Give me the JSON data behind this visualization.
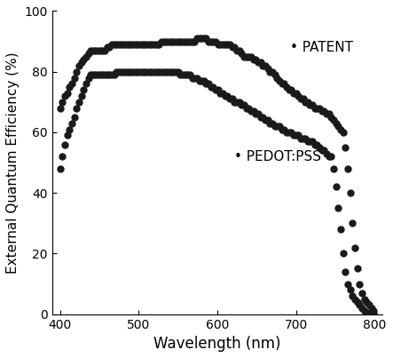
{
  "title": "",
  "xlabel": "Wavelength (nm)",
  "ylabel": "External Quantum Efficiency (%)",
  "xlim": [
    390,
    810
  ],
  "ylim": [
    0,
    100
  ],
  "xticks": [
    400,
    500,
    600,
    700,
    800
  ],
  "yticks": [
    0,
    20,
    40,
    60,
    80,
    100
  ],
  "marker_color": "#1a1a1a",
  "marker_size": 5,
  "legend_patent": "PATENT",
  "legend_pedot": "PEDOT:PSS",
  "patent_x": [
    400,
    403,
    406,
    409,
    412,
    415,
    418,
    421,
    424,
    427,
    430,
    433,
    436,
    439,
    442,
    445,
    448,
    451,
    454,
    457,
    460,
    463,
    466,
    469,
    472,
    475,
    478,
    481,
    484,
    487,
    490,
    493,
    496,
    499,
    502,
    505,
    508,
    511,
    514,
    517,
    520,
    523,
    526,
    529,
    532,
    535,
    538,
    541,
    544,
    547,
    550,
    553,
    556,
    559,
    562,
    565,
    568,
    571,
    574,
    577,
    580,
    583,
    586,
    589,
    592,
    595,
    598,
    601,
    604,
    607,
    610,
    613,
    616,
    619,
    622,
    625,
    628,
    631,
    634,
    637,
    640,
    643,
    646,
    649,
    652,
    655,
    658,
    661,
    664,
    667,
    670,
    673,
    676,
    679,
    682,
    685,
    688,
    691,
    694,
    697,
    700,
    703,
    706,
    709,
    712,
    715,
    718,
    721,
    724,
    727,
    730,
    733,
    736,
    739,
    742,
    745,
    748,
    751,
    754,
    757,
    760,
    763,
    766,
    769,
    772,
    775,
    778,
    781,
    784,
    787,
    790,
    793,
    796,
    799
  ],
  "patent_y": [
    68,
    70,
    72,
    73,
    75,
    76,
    78,
    80,
    82,
    83,
    84,
    85,
    86,
    87,
    87,
    87,
    87,
    87,
    87,
    87,
    88,
    88,
    89,
    89,
    89,
    89,
    89,
    89,
    89,
    89,
    89,
    89,
    89,
    89,
    89,
    89,
    89,
    89,
    89,
    89,
    89,
    89,
    89,
    90,
    90,
    90,
    90,
    90,
    90,
    90,
    90,
    90,
    90,
    90,
    90,
    90,
    90,
    90,
    91,
    91,
    91,
    91,
    91,
    90,
    90,
    90,
    90,
    89,
    89,
    89,
    89,
    89,
    89,
    88,
    88,
    87,
    87,
    86,
    85,
    85,
    85,
    85,
    84,
    84,
    83,
    83,
    82,
    82,
    81,
    80,
    80,
    79,
    78,
    77,
    76,
    76,
    75,
    74,
    74,
    73,
    73,
    72,
    71,
    71,
    70,
    70,
    69,
    69,
    68,
    68,
    68,
    67,
    67,
    66,
    66,
    65,
    64,
    63,
    62,
    61,
    60,
    55,
    48,
    40,
    30,
    22,
    15,
    10,
    7,
    5,
    4,
    3,
    2,
    1
  ],
  "pedot_x": [
    400,
    403,
    406,
    409,
    412,
    415,
    418,
    421,
    424,
    427,
    430,
    433,
    436,
    439,
    442,
    445,
    448,
    451,
    454,
    457,
    460,
    463,
    466,
    469,
    472,
    475,
    478,
    481,
    484,
    487,
    490,
    493,
    496,
    499,
    502,
    505,
    508,
    511,
    514,
    517,
    520,
    523,
    526,
    529,
    532,
    535,
    538,
    541,
    544,
    547,
    550,
    553,
    556,
    559,
    562,
    565,
    568,
    571,
    574,
    577,
    580,
    583,
    586,
    589,
    592,
    595,
    598,
    601,
    604,
    607,
    610,
    613,
    616,
    619,
    622,
    625,
    628,
    631,
    634,
    637,
    640,
    643,
    646,
    649,
    652,
    655,
    658,
    661,
    664,
    667,
    670,
    673,
    676,
    679,
    682,
    685,
    688,
    691,
    694,
    697,
    700,
    703,
    706,
    709,
    712,
    715,
    718,
    721,
    724,
    727,
    730,
    733,
    736,
    739,
    742,
    745,
    748,
    751,
    754,
    757,
    760,
    763,
    766,
    769,
    772,
    775,
    778,
    781,
    784,
    787,
    790,
    793,
    796,
    799
  ],
  "pedot_y": [
    48,
    52,
    56,
    59,
    61,
    63,
    65,
    68,
    70,
    72,
    74,
    76,
    78,
    79,
    79,
    79,
    79,
    79,
    79,
    79,
    79,
    79,
    79,
    79,
    80,
    80,
    80,
    80,
    80,
    80,
    80,
    80,
    80,
    80,
    80,
    80,
    80,
    80,
    80,
    80,
    80,
    80,
    80,
    80,
    80,
    80,
    80,
    80,
    80,
    80,
    80,
    79,
    79,
    79,
    79,
    79,
    78,
    78,
    78,
    77,
    77,
    77,
    76,
    76,
    75,
    75,
    74,
    74,
    73,
    73,
    72,
    72,
    71,
    71,
    70,
    70,
    70,
    69,
    69,
    68,
    68,
    67,
    67,
    66,
    66,
    65,
    65,
    64,
    64,
    63,
    63,
    62,
    62,
    62,
    61,
    61,
    60,
    60,
    60,
    59,
    59,
    59,
    58,
    58,
    58,
    57,
    57,
    57,
    56,
    56,
    55,
    54,
    54,
    53,
    52,
    52,
    48,
    42,
    35,
    28,
    20,
    14,
    10,
    8,
    6,
    5,
    4,
    3,
    2,
    1,
    0.5,
    0.2,
    0.1,
    0.1
  ]
}
